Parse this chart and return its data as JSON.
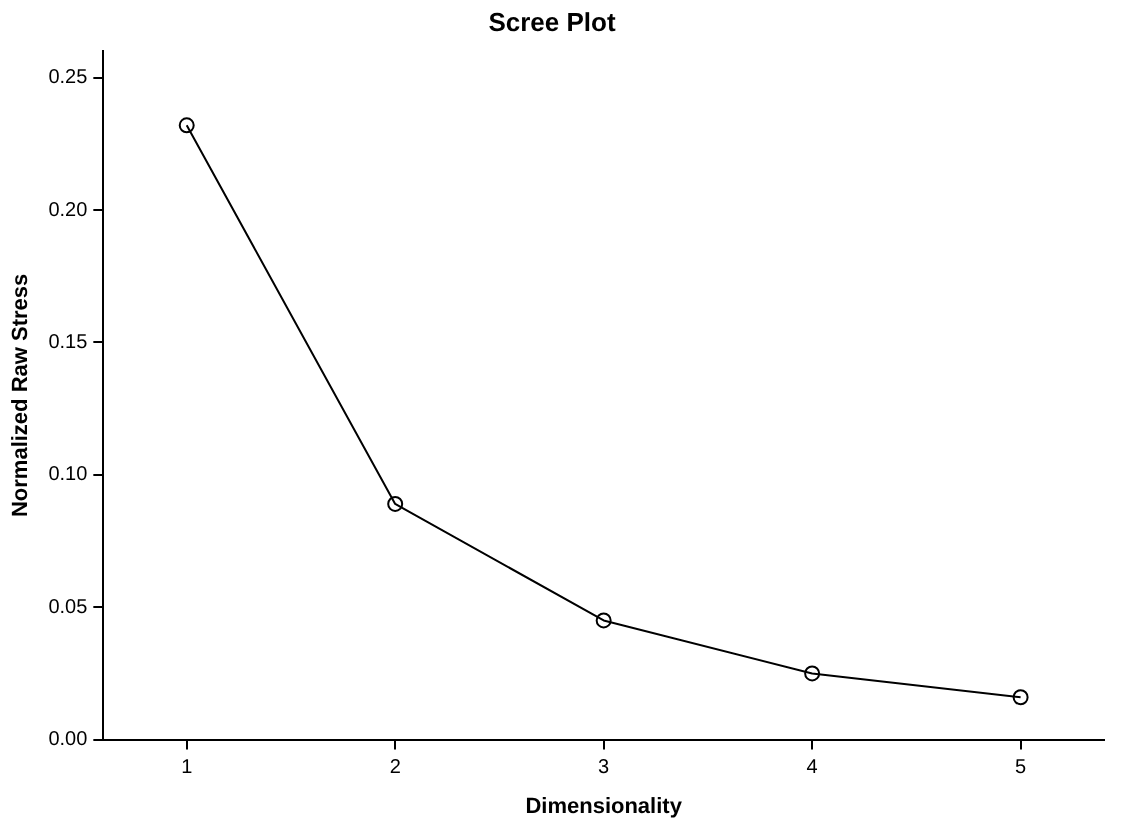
{
  "chart_data": {
    "type": "line",
    "title": "Scree Plot",
    "xlabel": "Dimensionality",
    "ylabel": "Normalized Raw Stress",
    "x": [
      1,
      2,
      3,
      4,
      5
    ],
    "series": [
      {
        "color": "#000000",
        "values": [
          0.232,
          0.089,
          0.045,
          0.025,
          0.016
        ]
      }
    ],
    "xlim": [
      0.6,
      5.4
    ],
    "xticks": [
      1,
      2,
      3,
      4,
      5
    ],
    "ylim": [
      0,
      0.26
    ],
    "yticks": [
      {
        "value": 0,
        "label": "0.00"
      },
      {
        "value": 0.05,
        "label": "0.05"
      },
      {
        "value": 0.1,
        "label": "0.10"
      },
      {
        "value": 0.15,
        "label": "0.15"
      },
      {
        "value": 0.2,
        "label": "0.20"
      },
      {
        "value": 0.25,
        "label": "0.25"
      }
    ],
    "grid": false,
    "legend": false,
    "marker": "circle",
    "line_style": "solid"
  }
}
